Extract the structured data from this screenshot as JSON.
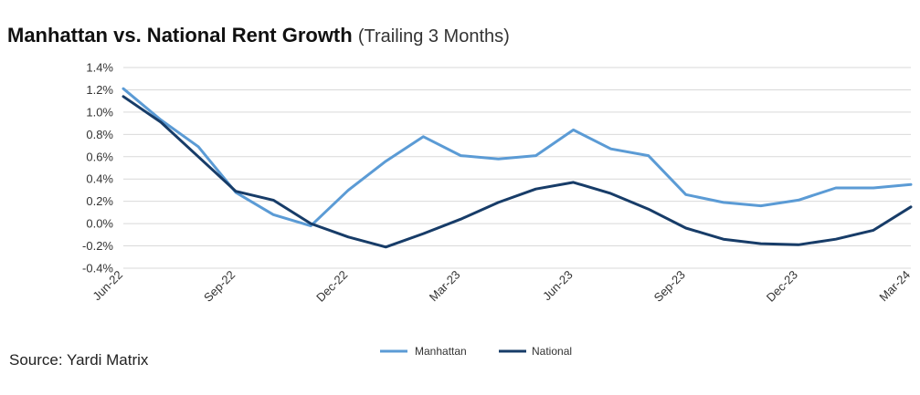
{
  "title": {
    "main": "Manhattan vs. National Rent Growth",
    "sub": "(Trailing 3 Months)"
  },
  "source": "Source: Yardi Matrix",
  "chart_data": {
    "type": "line",
    "title": "Manhattan vs. National Rent Growth (Trailing 3 Months)",
    "x": [
      "Jun-22",
      "Jul-22",
      "Aug-22",
      "Sep-22",
      "Oct-22",
      "Nov-22",
      "Dec-22",
      "Jan-23",
      "Feb-23",
      "Mar-23",
      "Apr-23",
      "May-23",
      "Jun-23",
      "Jul-23",
      "Aug-23",
      "Sep-23",
      "Oct-23",
      "Nov-23",
      "Dec-23",
      "Jan-24",
      "Feb-24",
      "Mar-24"
    ],
    "x_tick_labels": [
      "Jun-22",
      "Sep-22",
      "Dec-22",
      "Mar-23",
      "Jun-23",
      "Sep-23",
      "Dec-23",
      "Mar-24"
    ],
    "y_ticks": [
      "1.4%",
      "1.2%",
      "1.0%",
      "0.8%",
      "0.6%",
      "0.4%",
      "0.2%",
      "0.0%",
      "-0.2%",
      "-0.4%"
    ],
    "ylim": [
      -0.4,
      1.4
    ],
    "y_unit": "%",
    "grid": true,
    "legend_position": "bottom-center",
    "series": [
      {
        "name": "Manhattan",
        "color": "#5b9bd5",
        "values": [
          1.21,
          0.93,
          0.69,
          0.28,
          0.08,
          -0.02,
          0.3,
          0.56,
          0.78,
          0.61,
          0.58,
          0.61,
          0.84,
          0.67,
          0.61,
          0.26,
          0.19,
          0.16,
          0.21,
          0.32,
          0.32,
          0.35
        ]
      },
      {
        "name": "National",
        "color": "#173c68",
        "values": [
          1.14,
          0.91,
          0.6,
          0.29,
          0.21,
          0.0,
          -0.12,
          -0.21,
          -0.09,
          0.04,
          0.19,
          0.31,
          0.37,
          0.27,
          0.13,
          -0.04,
          -0.14,
          -0.18,
          -0.19,
          -0.14,
          -0.06,
          0.15
        ]
      }
    ]
  }
}
